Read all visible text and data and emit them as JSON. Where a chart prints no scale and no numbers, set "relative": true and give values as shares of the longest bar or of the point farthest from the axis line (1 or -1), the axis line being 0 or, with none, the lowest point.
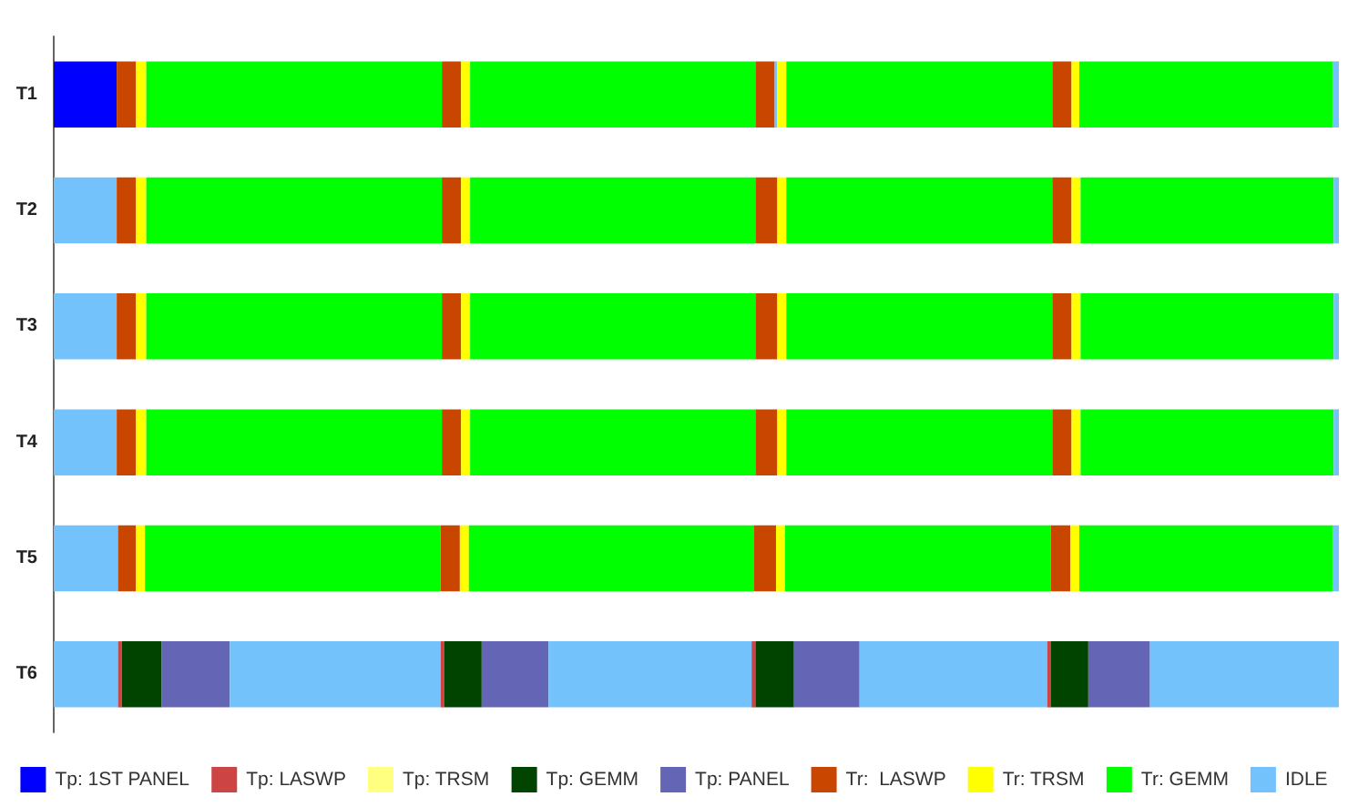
{
  "chart_data": {
    "type": "bar",
    "orientation": "horizontal",
    "stacked": true,
    "relative": true,
    "legend": "bottom",
    "categories": [
      "T1",
      "T2",
      "T3",
      "T4",
      "T5",
      "T6"
    ],
    "series": [
      {
        "name": "Tp: 1ST PANEL",
        "color": "#0000ff",
        "values": [
          0.049,
          null,
          null,
          null,
          null,
          null
        ]
      },
      {
        "color": "#74c2fb",
        "values": [
          null,
          0.049,
          0.049,
          0.049,
          0.05,
          0.05
        ]
      },
      {
        "name": "Tp: LASWP",
        "color": "#cc4444",
        "values": [
          null,
          null,
          null,
          null,
          null,
          0.003
        ]
      },
      {
        "name": "Tp: TRSM",
        "color": "#ffff80",
        "values": [
          null,
          null,
          null,
          null,
          null,
          null
        ]
      },
      {
        "name": "Tp: GEMM",
        "color": "#004400",
        "values": [
          null,
          null,
          null,
          null,
          null,
          0.031
        ]
      },
      {
        "name": "Tp: PANEL",
        "color": "#6565b5",
        "values": [
          null,
          null,
          null,
          null,
          null,
          0.053
        ]
      },
      {
        "color": "#74c2fb",
        "values": [
          null,
          null,
          null,
          null,
          null,
          0.164
        ]
      },
      {
        "color": "#cc4444",
        "values": [
          null,
          null,
          null,
          null,
          null,
          0.003
        ]
      },
      {
        "color": "#004400",
        "values": [
          null,
          null,
          null,
          null,
          null,
          0.029
        ]
      },
      {
        "color": "#6565b5",
        "values": [
          null,
          null,
          null,
          null,
          null,
          0.052
        ]
      },
      {
        "color": "#74c2fb",
        "values": [
          null,
          null,
          null,
          null,
          null,
          0.158
        ]
      },
      {
        "color": "#cc4444",
        "values": [
          null,
          null,
          null,
          null,
          null,
          0.003
        ]
      },
      {
        "color": "#004400",
        "values": [
          null,
          null,
          null,
          null,
          null,
          0.03
        ]
      },
      {
        "color": "#6565b5",
        "values": [
          null,
          null,
          null,
          null,
          null,
          0.051
        ]
      },
      {
        "color": "#74c2fb",
        "values": [
          null,
          null,
          null,
          null,
          null,
          0.146
        ]
      },
      {
        "color": "#cc4444",
        "values": [
          null,
          null,
          null,
          null,
          null,
          0.003
        ]
      },
      {
        "color": "#004400",
        "values": [
          null,
          null,
          null,
          null,
          null,
          0.029
        ]
      },
      {
        "color": "#6565b5",
        "values": [
          null,
          null,
          null,
          null,
          null,
          0.048
        ]
      },
      {
        "color": "#74c2fb",
        "values": [
          null,
          null,
          null,
          null,
          null,
          0.147
        ]
      },
      {
        "name": "Tr:  LASWP",
        "color": "#c84600",
        "values": [
          0.015,
          0.015,
          0.015,
          0.015,
          0.014,
          null
        ]
      },
      {
        "name": "Tr: TRSM",
        "color": "#ffff00",
        "values": [
          0.008,
          0.008,
          0.008,
          0.008,
          0.007,
          null
        ]
      },
      {
        "name": "Tr: GEMM",
        "color": "#00ff00",
        "values": [
          0.23,
          0.23,
          0.23,
          0.23,
          0.23,
          null
        ]
      },
      {
        "color": "#c84600",
        "values": [
          0.015,
          0.015,
          0.015,
          0.015,
          0.015,
          null
        ]
      },
      {
        "color": "#ffff00",
        "values": [
          0.007,
          0.007,
          0.007,
          0.007,
          0.007,
          null
        ]
      },
      {
        "color": "#00ff00",
        "values": [
          0.222,
          0.222,
          0.222,
          0.222,
          0.222,
          null
        ]
      },
      {
        "color": "#c84600",
        "values": [
          0.015,
          0.017,
          0.017,
          0.017,
          0.017,
          null
        ]
      },
      {
        "color": "#74c2fb",
        "values": [
          0.002,
          null,
          null,
          null,
          null,
          null
        ]
      },
      {
        "color": "#ffff00",
        "values": [
          0.007,
          0.007,
          0.007,
          0.007,
          0.007,
          null
        ]
      },
      {
        "color": "#00ff00",
        "values": [
          0.207,
          0.207,
          0.207,
          0.207,
          0.207,
          null
        ]
      },
      {
        "color": "#c84600",
        "values": [
          0.015,
          0.015,
          0.015,
          0.015,
          0.015,
          null
        ]
      },
      {
        "color": "#ffff00",
        "values": [
          0.006,
          0.007,
          0.007,
          0.007,
          0.007,
          null
        ]
      },
      {
        "color": "#00ff00",
        "values": [
          0.197,
          0.197,
          0.197,
          0.197,
          0.197,
          null
        ]
      },
      {
        "name": "IDLE",
        "color": "#74c2fb",
        "values": [
          0.005,
          0.004,
          0.004,
          0.004,
          0.005,
          null
        ]
      }
    ]
  }
}
